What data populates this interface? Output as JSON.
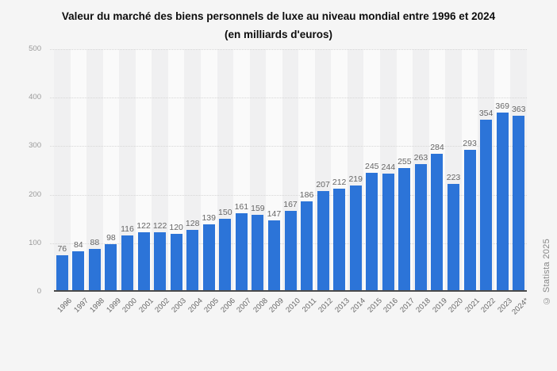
{
  "title": {
    "line1": "Valeur du marché des biens personnels de luxe au niveau mondial entre 1996 et 2024",
    "line2": "(en milliards d'euros)"
  },
  "watermark": "© Statista 2025",
  "colors": {
    "background": "#f5f5f5",
    "bar": "#2c74d8",
    "band_dark": "#f0f0f1",
    "band_light": "#fafafa",
    "gridline": "#d6d6d6",
    "axis_line": "#4a4a4a",
    "value_label": "#666666",
    "x_tick_label": "#666666",
    "y_tick_label": "#999999",
    "title_text": "#0d0d0d",
    "watermark_text": "#878787"
  },
  "chart_data": {
    "type": "bar",
    "title": "Valeur du marché des biens personnels de luxe au niveau mondial entre 1996 et 2024 (en milliards d'euros)",
    "categories": [
      "1996",
      "1997",
      "1998",
      "1999",
      "2000",
      "2001",
      "2002",
      "2003",
      "2004",
      "2005",
      "2006",
      "2007",
      "2008",
      "2009",
      "2010",
      "2011",
      "2012",
      "2013",
      "2014",
      "2015",
      "2016",
      "2017",
      "2018",
      "2019",
      "2020",
      "2021",
      "2022",
      "2023",
      "2024*"
    ],
    "values": [
      76,
      84,
      88,
      98,
      116,
      122,
      122,
      120,
      128,
      139,
      150,
      161,
      159,
      147,
      167,
      186,
      207,
      212,
      219,
      245,
      244,
      255,
      263,
      284,
      223,
      293,
      354,
      369,
      363
    ],
    "xlabel": "",
    "ylabel": "",
    "ylim": [
      0,
      500
    ],
    "yticks": [
      0,
      100,
      200,
      300,
      400,
      500
    ],
    "grid": true,
    "legend": false,
    "value_labels": true
  }
}
